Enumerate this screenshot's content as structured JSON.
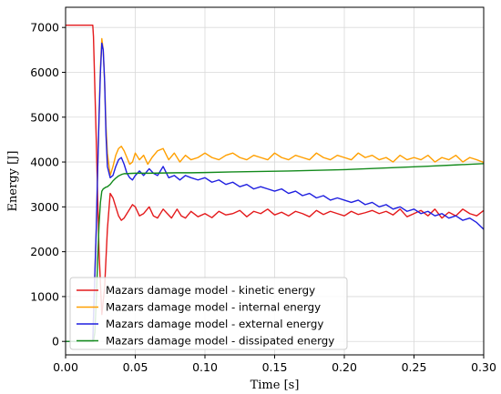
{
  "chart_data": {
    "type": "line",
    "title": "",
    "xlabel": "Time [s]",
    "ylabel": "Energy [J]",
    "xlim": [
      0,
      0.3
    ],
    "ylim": [
      -300,
      7450
    ],
    "xticks": [
      "0.00",
      "0.05",
      "0.10",
      "0.15",
      "0.20",
      "0.25",
      "0.30"
    ],
    "yticks": [
      "0",
      "1000",
      "2000",
      "3000",
      "4000",
      "5000",
      "6000",
      "7000"
    ],
    "grid": true,
    "legend_position": "lower-left",
    "series": [
      {
        "name": "Mazars damage model - kinetic energy",
        "color": "#e41a1c",
        "x": [
          0,
          0.0195,
          0.02,
          0.022,
          0.024,
          0.026,
          0.028,
          0.03,
          0.032,
          0.034,
          0.036,
          0.038,
          0.04,
          0.042,
          0.045,
          0.048,
          0.05,
          0.053,
          0.056,
          0.06,
          0.063,
          0.066,
          0.07,
          0.073,
          0.076,
          0.08,
          0.083,
          0.086,
          0.09,
          0.095,
          0.1,
          0.105,
          0.11,
          0.115,
          0.12,
          0.125,
          0.13,
          0.135,
          0.14,
          0.145,
          0.15,
          0.155,
          0.16,
          0.165,
          0.17,
          0.175,
          0.18,
          0.185,
          0.19,
          0.195,
          0.2,
          0.205,
          0.21,
          0.215,
          0.22,
          0.225,
          0.23,
          0.235,
          0.24,
          0.245,
          0.25,
          0.255,
          0.26,
          0.265,
          0.27,
          0.275,
          0.28,
          0.285,
          0.29,
          0.295,
          0.3
        ],
        "values": [
          7050,
          7050,
          6800,
          4500,
          2000,
          600,
          1200,
          2500,
          3300,
          3200,
          3000,
          2800,
          2700,
          2750,
          2900,
          3050,
          3000,
          2800,
          2850,
          3000,
          2800,
          2750,
          2950,
          2850,
          2750,
          2950,
          2800,
          2750,
          2900,
          2780,
          2850,
          2760,
          2900,
          2820,
          2850,
          2920,
          2780,
          2900,
          2850,
          2950,
          2820,
          2880,
          2800,
          2900,
          2850,
          2780,
          2920,
          2830,
          2900,
          2850,
          2800,
          2900,
          2830,
          2870,
          2920,
          2850,
          2900,
          2820,
          2950,
          2780,
          2850,
          2920,
          2800,
          2950,
          2750,
          2880,
          2800,
          2950,
          2850,
          2800,
          2920
        ]
      },
      {
        "name": "Mazars damage model - internal energy",
        "color": "#ff9f00",
        "x": [
          0,
          0.0195,
          0.021,
          0.022,
          0.023,
          0.024,
          0.025,
          0.026,
          0.027,
          0.028,
          0.029,
          0.03,
          0.032,
          0.034,
          0.036,
          0.038,
          0.04,
          0.042,
          0.044,
          0.046,
          0.048,
          0.05,
          0.053,
          0.056,
          0.059,
          0.062,
          0.066,
          0.07,
          0.074,
          0.078,
          0.082,
          0.086,
          0.09,
          0.095,
          0.1,
          0.105,
          0.11,
          0.115,
          0.12,
          0.125,
          0.13,
          0.135,
          0.14,
          0.145,
          0.15,
          0.155,
          0.16,
          0.165,
          0.17,
          0.175,
          0.18,
          0.185,
          0.19,
          0.195,
          0.2,
          0.205,
          0.21,
          0.215,
          0.22,
          0.225,
          0.23,
          0.235,
          0.24,
          0.245,
          0.25,
          0.255,
          0.26,
          0.265,
          0.27,
          0.275,
          0.28,
          0.285,
          0.29,
          0.295,
          0.3
        ],
        "values": [
          0,
          0,
          1500,
          2500,
          3800,
          5000,
          6100,
          6750,
          6500,
          5800,
          4800,
          4200,
          3700,
          3900,
          4150,
          4300,
          4350,
          4250,
          4100,
          3950,
          4000,
          4200,
          4050,
          4150,
          3950,
          4100,
          4250,
          4300,
          4050,
          4200,
          4000,
          4150,
          4050,
          4100,
          4200,
          4100,
          4050,
          4150,
          4200,
          4100,
          4050,
          4150,
          4100,
          4050,
          4200,
          4100,
          4050,
          4150,
          4100,
          4050,
          4200,
          4100,
          4050,
          4150,
          4100,
          4050,
          4200,
          4100,
          4150,
          4050,
          4100,
          4000,
          4150,
          4050,
          4100,
          4050,
          4150,
          4000,
          4100,
          4050,
          4150,
          4000,
          4100,
          4050,
          3990
        ]
      },
      {
        "name": "Mazars damage model - external energy",
        "color": "#1f1fe0",
        "x": [
          0,
          0.0195,
          0.021,
          0.022,
          0.023,
          0.024,
          0.025,
          0.026,
          0.027,
          0.028,
          0.029,
          0.03,
          0.032,
          0.034,
          0.036,
          0.038,
          0.04,
          0.042,
          0.044,
          0.046,
          0.048,
          0.05,
          0.053,
          0.056,
          0.06,
          0.063,
          0.066,
          0.07,
          0.074,
          0.078,
          0.082,
          0.086,
          0.09,
          0.095,
          0.1,
          0.105,
          0.11,
          0.115,
          0.12,
          0.125,
          0.13,
          0.135,
          0.14,
          0.145,
          0.15,
          0.155,
          0.16,
          0.165,
          0.17,
          0.175,
          0.18,
          0.185,
          0.19,
          0.195,
          0.2,
          0.205,
          0.21,
          0.215,
          0.22,
          0.225,
          0.23,
          0.235,
          0.24,
          0.245,
          0.25,
          0.255,
          0.26,
          0.265,
          0.27,
          0.275,
          0.28,
          0.285,
          0.29,
          0.295,
          0.3
        ],
        "values": [
          0,
          0,
          1500,
          2500,
          3800,
          5000,
          6000,
          6650,
          6500,
          5800,
          4600,
          3900,
          3650,
          3700,
          3900,
          4050,
          4100,
          3950,
          3750,
          3650,
          3600,
          3700,
          3800,
          3700,
          3850,
          3750,
          3700,
          3900,
          3650,
          3700,
          3600,
          3700,
          3650,
          3600,
          3650,
          3550,
          3600,
          3500,
          3550,
          3450,
          3500,
          3400,
          3450,
          3400,
          3350,
          3400,
          3300,
          3350,
          3250,
          3300,
          3200,
          3250,
          3150,
          3200,
          3150,
          3100,
          3150,
          3050,
          3100,
          3000,
          3050,
          2950,
          3000,
          2900,
          2950,
          2850,
          2900,
          2800,
          2850,
          2750,
          2800,
          2700,
          2750,
          2650,
          2500
        ]
      },
      {
        "name": "Mazars damage model - dissipated energy",
        "color": "#138a1c",
        "x": [
          0,
          0.02,
          0.021,
          0.022,
          0.023,
          0.024,
          0.025,
          0.026,
          0.027,
          0.028,
          0.029,
          0.03,
          0.032,
          0.034,
          0.036,
          0.038,
          0.04,
          0.042,
          0.044,
          0.046,
          0.05,
          0.06,
          0.07,
          0.08,
          0.09,
          0.1,
          0.12,
          0.14,
          0.16,
          0.18,
          0.2,
          0.22,
          0.24,
          0.26,
          0.28,
          0.3
        ],
        "values": [
          0,
          0,
          200,
          900,
          1800,
          2600,
          3100,
          3350,
          3400,
          3420,
          3440,
          3450,
          3500,
          3580,
          3640,
          3690,
          3720,
          3740,
          3740,
          3745,
          3750,
          3750,
          3755,
          3760,
          3760,
          3765,
          3780,
          3790,
          3800,
          3815,
          3830,
          3855,
          3880,
          3905,
          3935,
          3965
        ]
      }
    ]
  }
}
